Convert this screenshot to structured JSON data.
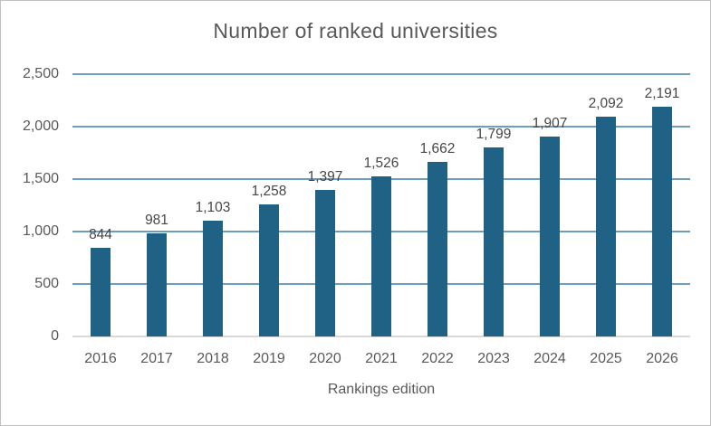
{
  "window": {
    "background": "#ffffff",
    "border_color": "#c1c1c1"
  },
  "chart_data": {
    "type": "bar",
    "title": "Number of ranked universities",
    "xlabel": "Rankings edition",
    "ylabel": "",
    "categories": [
      "2016",
      "2017",
      "2018",
      "2019",
      "2020",
      "2021",
      "2022",
      "2023",
      "2024",
      "2025",
      "2026"
    ],
    "values": [
      844,
      981,
      1103,
      1258,
      1397,
      1526,
      1662,
      1799,
      1907,
      2092,
      2191
    ],
    "value_labels": [
      "844",
      "981",
      "1,103",
      "1,258",
      "1,397",
      "1,526",
      "1,662",
      "1,799",
      "1,907",
      "2,092",
      "2,191"
    ],
    "ylim": [
      0,
      2500
    ],
    "ytick_values": [
      0,
      500,
      1000,
      1500,
      2000,
      2500
    ],
    "ytick_labels": [
      "0",
      "500",
      "1,000",
      "1,500",
      "2,000",
      "2,500"
    ],
    "grid": true,
    "legend": false,
    "colors": {
      "bar": "#1f6285",
      "gridline": "#6d9ec0",
      "baseline": "#d9d9d9",
      "axis_text": "#595959",
      "value_label_text": "#464646",
      "title_text": "#595959"
    }
  }
}
